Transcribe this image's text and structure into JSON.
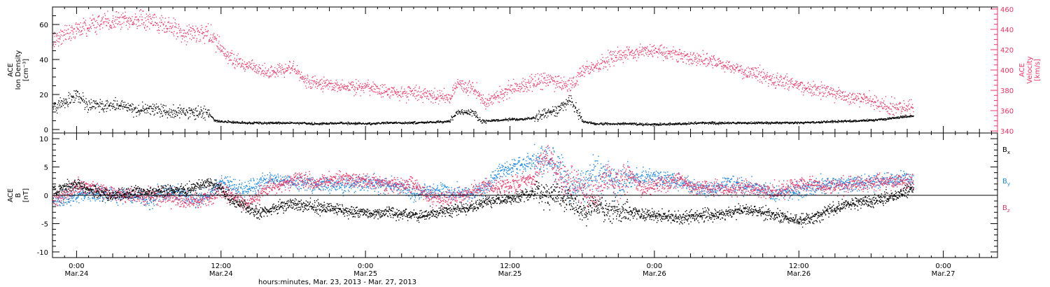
{
  "colors": {
    "density": "#000000",
    "velocity": "#ee3366",
    "bx": "#000000",
    "by": "#1a88e6",
    "bz": "#ee3366",
    "frame": "#000000"
  },
  "time_axis": {
    "ticks": [
      {
        "hour": 0,
        "time": "0:00",
        "date": "Mar.24"
      },
      {
        "hour": 12,
        "time": "12:00",
        "date": "Mar.24"
      },
      {
        "hour": 24,
        "time": "0:00",
        "date": "Mar.25"
      },
      {
        "hour": 36,
        "time": "12:00",
        "date": "Mar.25"
      },
      {
        "hour": 48,
        "time": "0:00",
        "date": "Mar.26"
      },
      {
        "hour": 60,
        "time": "12:00",
        "date": "Mar.26"
      },
      {
        "hour": 72,
        "time": "0:00",
        "date": "Mar.27"
      }
    ],
    "xlabel": "hours:minutes, Mar. 23, 2013 - Mar. 27, 2013",
    "range_hours": [
      -2,
      76.5
    ],
    "data_end_hours": 69.5
  },
  "chart_data": [
    {
      "type": "scatter",
      "panel": "top",
      "series": [
        {
          "axis": "left",
          "label_lines": [
            "ACE",
            "Ion Density",
            "[cm⁻³]"
          ],
          "ylim": [
            -2,
            70
          ],
          "yticks": [
            0,
            20,
            40,
            60
          ],
          "profile": [
            [
              -2,
              13
            ],
            [
              0,
              20
            ],
            [
              1,
              14
            ],
            [
              3,
              14
            ],
            [
              5,
              12
            ],
            [
              7,
              11
            ],
            [
              9,
              10
            ],
            [
              11,
              9
            ],
            [
              11.5,
              5
            ],
            [
              14,
              4
            ],
            [
              16,
              4
            ],
            [
              18,
              4
            ],
            [
              20,
              3.5
            ],
            [
              22,
              4
            ],
            [
              24,
              3.5
            ],
            [
              26,
              4
            ],
            [
              28,
              4
            ],
            [
              30,
              4.5
            ],
            [
              31,
              5
            ],
            [
              31.5,
              10
            ],
            [
              33,
              10
            ],
            [
              33.5,
              5
            ],
            [
              36,
              6
            ],
            [
              37,
              6
            ],
            [
              38,
              7
            ],
            [
              39,
              9
            ],
            [
              40,
              12
            ],
            [
              41,
              17
            ],
            [
              42,
              5
            ],
            [
              43,
              3.5
            ],
            [
              46,
              3.5
            ],
            [
              48,
              3
            ],
            [
              50,
              3.5
            ],
            [
              52,
              4
            ],
            [
              54,
              4
            ],
            [
              56,
              4
            ],
            [
              58,
              4
            ],
            [
              60,
              4
            ],
            [
              62,
              4.5
            ],
            [
              64,
              5
            ],
            [
              66,
              5.5
            ],
            [
              67,
              6
            ],
            [
              68,
              7
            ],
            [
              69.5,
              8
            ]
          ]
        },
        {
          "axis": "right",
          "label_lines": [
            "ACE",
            "Velocity",
            "[km/s]"
          ],
          "ylim": [
            338,
            462
          ],
          "yticks": [
            340,
            360,
            380,
            400,
            420,
            440,
            460
          ],
          "profile": [
            [
              -2,
              430
            ],
            [
              0,
              440
            ],
            [
              2,
              447
            ],
            [
              4,
              450
            ],
            [
              6,
              448
            ],
            [
              8,
              442
            ],
            [
              9,
              437
            ],
            [
              10,
              435
            ],
            [
              11,
              435
            ],
            [
              11.5,
              432
            ],
            [
              12,
              420
            ],
            [
              13,
              410
            ],
            [
              14,
              405
            ],
            [
              15,
              400
            ],
            [
              16,
              398
            ],
            [
              17,
              400
            ],
            [
              18,
              402
            ],
            [
              19,
              390
            ],
            [
              20,
              386
            ],
            [
              22,
              384
            ],
            [
              24,
              383
            ],
            [
              26,
              379
            ],
            [
              28,
              378
            ],
            [
              30,
              375
            ],
            [
              31,
              374
            ],
            [
              31.5,
              386
            ],
            [
              33,
              383
            ],
            [
              33.5,
              374
            ],
            [
              34,
              368
            ],
            [
              35,
              375
            ],
            [
              36,
              382
            ],
            [
              37,
              385
            ],
            [
              38,
              388
            ],
            [
              39,
              390
            ],
            [
              40,
              388
            ],
            [
              41,
              384
            ],
            [
              42,
              400
            ],
            [
              43,
              404
            ],
            [
              44,
              410
            ],
            [
              46,
              418
            ],
            [
              48,
              420
            ],
            [
              50,
              415
            ],
            [
              52,
              410
            ],
            [
              54,
              405
            ],
            [
              56,
              398
            ],
            [
              58,
              390
            ],
            [
              60,
              385
            ],
            [
              62,
              380
            ],
            [
              64,
              374
            ],
            [
              66,
              369
            ],
            [
              67,
              365
            ],
            [
              68,
              364
            ],
            [
              69.5,
              363
            ]
          ]
        }
      ]
    },
    {
      "type": "scatter",
      "panel": "bottom",
      "axis_label_lines": [
        "ACE",
        "B",
        "[nT]"
      ],
      "ylim": [
        -11,
        11
      ],
      "yticks": [
        -10,
        -5,
        0,
        5,
        10
      ],
      "series": [
        {
          "name": "B",
          "subscript": "x",
          "profile": [
            [
              -2,
              1
            ],
            [
              0,
              2
            ],
            [
              1,
              1
            ],
            [
              3,
              0
            ],
            [
              5,
              0.5
            ],
            [
              7,
              0.8
            ],
            [
              8,
              1
            ],
            [
              9,
              1
            ],
            [
              10,
              1.5
            ],
            [
              11,
              2.5
            ],
            [
              12,
              1
            ],
            [
              13,
              -1
            ],
            [
              14,
              -2
            ],
            [
              15,
              -3
            ],
            [
              16,
              -2.5
            ],
            [
              18,
              -1.5
            ],
            [
              20,
              -2
            ],
            [
              22,
              -2.5
            ],
            [
              24,
              -3
            ],
            [
              26,
              -3
            ],
            [
              28,
              -3.5
            ],
            [
              30,
              -3
            ],
            [
              31,
              -2.5
            ],
            [
              33,
              -2
            ],
            [
              34,
              -1
            ],
            [
              36,
              -0.5
            ],
            [
              37,
              0
            ],
            [
              38,
              0.5
            ],
            [
              40,
              0
            ],
            [
              41,
              -1
            ],
            [
              42,
              -3
            ],
            [
              43,
              -2
            ],
            [
              44,
              -2.5
            ],
            [
              46,
              -3
            ],
            [
              48,
              -3.5
            ],
            [
              50,
              -4
            ],
            [
              52,
              -3.5
            ],
            [
              54,
              -3
            ],
            [
              56,
              -2.5
            ],
            [
              58,
              -3.5
            ],
            [
              60,
              -4.5
            ],
            [
              61,
              -4
            ],
            [
              62,
              -3
            ],
            [
              64,
              -1.5
            ],
            [
              66,
              -1
            ],
            [
              68,
              0
            ],
            [
              69.5,
              1.5
            ]
          ]
        },
        {
          "name": "B",
          "subscript": "y",
          "profile": [
            [
              -2,
              -1
            ],
            [
              0,
              0
            ],
            [
              1,
              0.5
            ],
            [
              3,
              0
            ],
            [
              5,
              0
            ],
            [
              6,
              -1
            ],
            [
              7,
              0.5
            ],
            [
              8,
              0.5
            ],
            [
              9,
              0
            ],
            [
              10,
              -0.5
            ],
            [
              11,
              0
            ],
            [
              12,
              2.5
            ],
            [
              13,
              1.5
            ],
            [
              14,
              1
            ],
            [
              16,
              3
            ],
            [
              18,
              2.5
            ],
            [
              20,
              2
            ],
            [
              22,
              2
            ],
            [
              24,
              2.5
            ],
            [
              26,
              2
            ],
            [
              28,
              0.5
            ],
            [
              30,
              1
            ],
            [
              32,
              0.5
            ],
            [
              33,
              0.5
            ],
            [
              34,
              1.5
            ],
            [
              35,
              4
            ],
            [
              36,
              5
            ],
            [
              38,
              6
            ],
            [
              39,
              6.5
            ],
            [
              40,
              5
            ],
            [
              41,
              1
            ],
            [
              42,
              2
            ],
            [
              43,
              4
            ],
            [
              44,
              3.5
            ],
            [
              45,
              2
            ],
            [
              46,
              3
            ],
            [
              48,
              3.5
            ],
            [
              50,
              2.5
            ],
            [
              52,
              1
            ],
            [
              54,
              2
            ],
            [
              56,
              1.5
            ],
            [
              58,
              0.5
            ],
            [
              60,
              1
            ],
            [
              61,
              1.5
            ],
            [
              62,
              2
            ],
            [
              64,
              2
            ],
            [
              66,
              2.5
            ],
            [
              68,
              3
            ],
            [
              69.5,
              3
            ]
          ]
        },
        {
          "name": "B",
          "subscript": "z",
          "profile": [
            [
              -2,
              -1
            ],
            [
              0,
              1.5
            ],
            [
              1,
              1.5
            ],
            [
              3,
              0.5
            ],
            [
              5,
              0
            ],
            [
              7,
              0
            ],
            [
              8,
              -0.5
            ],
            [
              9,
              -1
            ],
            [
              10,
              -1
            ],
            [
              11,
              -0.5
            ],
            [
              12,
              1
            ],
            [
              13,
              0
            ],
            [
              14,
              -1.5
            ],
            [
              16,
              1.5
            ],
            [
              17,
              2
            ],
            [
              18,
              3
            ],
            [
              20,
              2.5
            ],
            [
              22,
              3
            ],
            [
              24,
              2.5
            ],
            [
              26,
              2
            ],
            [
              28,
              2
            ],
            [
              29,
              0
            ],
            [
              30,
              -0.5
            ],
            [
              32,
              0
            ],
            [
              33,
              1
            ],
            [
              34,
              1.5
            ],
            [
              36,
              2
            ],
            [
              37,
              2.5
            ],
            [
              38,
              3
            ],
            [
              39,
              7
            ],
            [
              40,
              4
            ],
            [
              41,
              2
            ],
            [
              42,
              1
            ],
            [
              43,
              0
            ],
            [
              44,
              3
            ],
            [
              45,
              2
            ],
            [
              46,
              3.5
            ],
            [
              47,
              1
            ],
            [
              48,
              2
            ],
            [
              49,
              2
            ],
            [
              50,
              3
            ],
            [
              51,
              1.5
            ],
            [
              52,
              1.5
            ],
            [
              54,
              1
            ],
            [
              56,
              1.5
            ],
            [
              58,
              0.5
            ],
            [
              60,
              2
            ],
            [
              61,
              2
            ],
            [
              62,
              1.5
            ],
            [
              64,
              2
            ],
            [
              66,
              2.5
            ],
            [
              68,
              2.5
            ],
            [
              69.5,
              2.5
            ]
          ]
        }
      ]
    }
  ]
}
